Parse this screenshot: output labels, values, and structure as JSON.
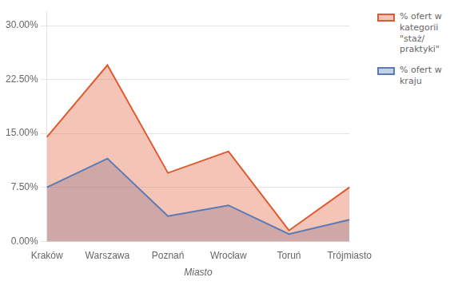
{
  "chart_data": {
    "type": "area",
    "categories": [
      "Kraków",
      "Warszawa",
      "Poznań",
      "Wrocław",
      "Toruń",
      "Trójmiasto"
    ],
    "series": [
      {
        "name": "% ofert w\nkategorii\n\"staż/\npraktyki\"",
        "color": "#e05a30",
        "values": [
          0.145,
          0.245,
          0.095,
          0.125,
          0.015,
          0.075
        ]
      },
      {
        "name": "% ofert w\nkraju",
        "color": "#5b7ab5",
        "values": [
          0.075,
          0.115,
          0.035,
          0.05,
          0.01,
          0.03
        ]
      }
    ],
    "xlabel": "Miasto",
    "ylim": [
      0.0,
      0.32
    ],
    "yticks": [
      {
        "value": 0.0,
        "label": "0.00%"
      },
      {
        "value": 0.075,
        "label": "7.50%"
      },
      {
        "value": 0.15,
        "label": "15.00%"
      },
      {
        "value": 0.225,
        "label": "22.50%"
      },
      {
        "value": 0.3,
        "label": "30.00%"
      }
    ],
    "grid": true,
    "legend": "right"
  }
}
